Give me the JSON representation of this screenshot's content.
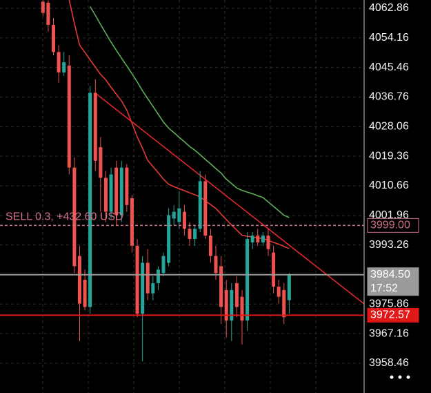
{
  "chart_data": {
    "type": "candlestick",
    "up_color": "#26a69a",
    "down_color": "#ef5350",
    "xlim": [
      -8.2,
      61.3
    ],
    "ylim": [
      3949.7,
      4065.3
    ],
    "yticks": [
      4062.86,
      4054.16,
      4045.46,
      4036.76,
      4028.06,
      4019.36,
      4010.66,
      4001.96,
      3993.26,
      3975.86,
      3967.16,
      3958.46
    ],
    "grid": true,
    "candles": {
      "open": [
        4064.8,
        4064.5,
        4058,
        4050,
        4044,
        4046,
        4016,
        3990,
        3983,
        3975,
        4038,
        4022,
        4013,
        4003,
        4016,
        4002,
        4016,
        4007,
        3993,
        3973,
        3988,
        3979,
        3982,
        3985,
        3988,
        4001,
        4000,
        4003,
        3998,
        3995,
        3998,
        4012,
        3996,
        3990,
        3987,
        3980,
        3971,
        3982,
        3978,
        3971,
        3994,
        3996,
        3994,
        3996,
        3991,
        3981,
        3980,
        3977
      ],
      "high": [
        4065.2,
        4065.2,
        4060,
        4052,
        4050,
        4049,
        4019,
        3993,
        3986,
        4040,
        4042,
        4025,
        4015,
        4016,
        4018,
        4018,
        4017,
        4008,
        3995,
        3990,
        3992,
        3984,
        3987,
        3991,
        4004,
        4005,
        4009,
        4005,
        4000,
        3999,
        4015,
        4014,
        3998,
        3993,
        3990,
        3983,
        3982,
        3984,
        3980,
        3997,
        3997,
        3998,
        3997,
        3998,
        3993,
        3983,
        3982,
        3985
      ],
      "low": [
        4060.5,
        4056,
        4049,
        4041,
        4043,
        4014,
        3985,
        3965,
        3974,
        3973,
        4015,
        4003,
        4000,
        4001,
        3999,
        4000,
        4003,
        3991,
        3972,
        3959,
        3977,
        3977,
        3980,
        3984,
        3987,
        3999,
        3998,
        3996,
        3993,
        3993,
        3997,
        3995,
        3988,
        3983,
        3970,
        3966,
        3965,
        3972,
        3964,
        3968,
        3992,
        3993,
        3993,
        3990,
        3979,
        3976,
        3970,
        3973
      ],
      "close": [
        4061.5,
        4058,
        4050,
        4044,
        4047,
        4016,
        3987,
        3976,
        3975,
        4038,
        4018,
        4013,
        4003,
        4014,
        4002,
        4016,
        4005,
        3993,
        3973,
        3988,
        3979,
        3982,
        3986,
        3990,
        4002,
        4003,
        4004,
        3998,
        3995,
        3998,
        4012,
        3996,
        3990,
        3985,
        3975,
        3971,
        3980,
        3975,
        3971,
        3995,
        3996,
        3994,
        3996,
        3992,
        3981,
        3978,
        3972,
        3984.5
      ]
    },
    "moving_averages": [
      {
        "color": "#e53935",
        "values": [
          null,
          null,
          null,
          null,
          null,
          4065.3,
          4058.4,
          4052.0,
          4049.9,
          4047.7,
          4045.6,
          4043.4,
          4041.8,
          4039.6,
          4037.6,
          4035.6,
          4032.9,
          4029.0,
          4025.0,
          4021.7,
          4018.1,
          4016.3,
          4014.5,
          4012.6,
          4011.1,
          4010.4,
          4009.8,
          4009.2,
          4008.6,
          4008.0,
          4007.4,
          4006.2,
          4005.1,
          4004.0,
          4002.3,
          4000.7,
          3999.1,
          3997.6,
          3996.1,
          3995.8,
          3995.6,
          3995.4,
          3995.1,
          3994.6,
          3994.0,
          3993.5,
          3992.8,
          3992.2
        ]
      },
      {
        "color": "#5fae5a",
        "values": [
          null,
          null,
          null,
          null,
          null,
          null,
          null,
          null,
          null,
          4063.4,
          4060.8,
          4058.1,
          4055.5,
          4052.9,
          4050.5,
          4048.2,
          4045.9,
          4043.6,
          4041.2,
          4038.6,
          4036.3,
          4034.0,
          4031.7,
          4029.4,
          4027.6,
          4026.3,
          4024.9,
          4023.6,
          4022.2,
          4021.1,
          4019.8,
          4018.4,
          4017.1,
          4015.7,
          4014.4,
          4012.6,
          4011.3,
          4010.0,
          4009.3,
          4008.8,
          4008.3,
          4007.7,
          4007.2,
          4005.9,
          4004.6,
          4003.3,
          4002.0,
          4001.3
        ]
      }
    ],
    "trendline": {
      "color": "#e0262c",
      "x": [
        10,
        61.3
      ],
      "y": [
        4037.9,
        3975.9
      ]
    },
    "price_lines": [
      {
        "value": 3999,
        "label": "3999.00",
        "color": "#d4728a",
        "style": "dashed"
      },
      {
        "value": 3984.5,
        "label": "3984.50",
        "color": "#9a9a9a",
        "style": "solid",
        "countdown": "17:52"
      },
      {
        "value": 3972.57,
        "label": "3972.57",
        "color": "#e01818",
        "style": "solid"
      }
    ],
    "position_label": "SELL 0.3,  +432.60 USD"
  }
}
